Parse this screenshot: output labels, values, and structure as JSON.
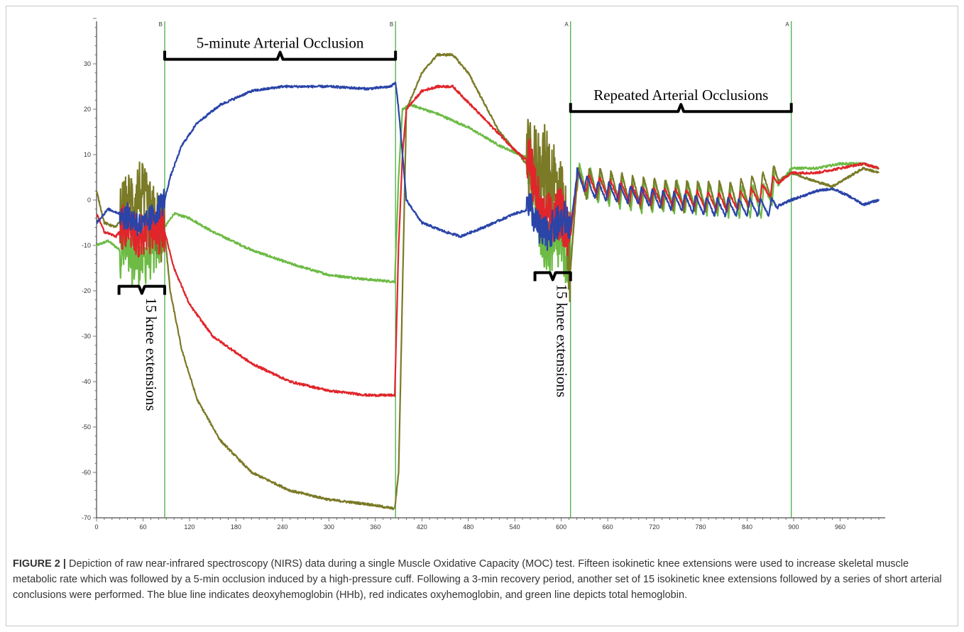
{
  "figure": {
    "label": "FIGURE 2 |",
    "caption": "Depiction of raw near-infrared spectroscopy (NIRS) data during a single Muscle Oxidative Capacity (MOC) test. Fifteen isokinetic knee extensions were used to increase skeletal muscle metabolic rate which was followed by a 5-min occlusion induced by a high-pressure cuff. Following a 3-min recovery period, another set of 15 isokinetic knee extensions followed by a series of short arterial conclusions were performed. The blue line indicates deoxyhemoglobin (HHb), red indicates oxyhemoglobin, and green line depicts total hemoglobin."
  },
  "chart_data": {
    "type": "line",
    "title": "",
    "xlabel": "",
    "ylabel": "",
    "xlim": [
      0,
      1010
    ],
    "ylim": [
      -70,
      40
    ],
    "x_ticks": [
      "0",
      "60",
      "120",
      "180",
      "240",
      "300",
      "360",
      "420",
      "480",
      "540",
      "600",
      "660",
      "720",
      "780",
      "840",
      "900",
      "960"
    ],
    "y_ticks": [
      "30",
      "20",
      "10",
      "0",
      "-10",
      "-20",
      "-30",
      "-40",
      "-50",
      "-60",
      "-70"
    ],
    "markers": [
      {
        "x": 88,
        "label": "B"
      },
      {
        "x": 386,
        "label": "B"
      },
      {
        "x": 612,
        "label": "A"
      },
      {
        "x": 897,
        "label": "A"
      }
    ],
    "annotations": [
      {
        "text": "5-minute Arterial Occlusion",
        "x_start": 88,
        "x_end": 386,
        "y": 31
      },
      {
        "text": "Repeated Arterial Occlusions",
        "x_start": 612,
        "x_end": 897,
        "y": 19.5
      },
      {
        "text": "15 knee  extensions",
        "x_start": 29,
        "x_end": 88,
        "y": -19
      },
      {
        "text": "15 knee  extensions",
        "x_start": 566,
        "x_end": 612,
        "y": -16
      }
    ],
    "colors": {
      "blue": "#2a44a8",
      "red": "#e0262b",
      "green": "#6dbb45",
      "olive": "#7a7a27",
      "marker": "#3aa63a"
    },
    "series": [
      {
        "color": "blue",
        "points": [
          [
            0,
            -5
          ],
          [
            15,
            -2
          ],
          [
            30,
            -3
          ],
          [
            45,
            -4
          ],
          [
            60,
            -6
          ],
          [
            75,
            -3
          ],
          [
            88,
            0
          ],
          [
            95,
            5
          ],
          [
            110,
            12
          ],
          [
            130,
            17
          ],
          [
            160,
            21
          ],
          [
            200,
            24
          ],
          [
            240,
            25
          ],
          [
            300,
            25
          ],
          [
            350,
            24.5
          ],
          [
            380,
            25
          ],
          [
            386,
            26
          ],
          [
            390,
            20
          ],
          [
            400,
            0
          ],
          [
            420,
            -5
          ],
          [
            450,
            -7
          ],
          [
            470,
            -8
          ],
          [
            500,
            -6
          ],
          [
            540,
            -3
          ],
          [
            560,
            -2
          ],
          [
            575,
            -8
          ],
          [
            590,
            -6
          ],
          [
            605,
            -4
          ],
          [
            612,
            -6
          ],
          [
            620,
            5
          ],
          [
            640,
            2
          ],
          [
            680,
            1
          ],
          [
            720,
            0
          ],
          [
            760,
            -1
          ],
          [
            800,
            -2
          ],
          [
            840,
            -2
          ],
          [
            870,
            -2
          ],
          [
            897,
            0
          ],
          [
            930,
            2
          ],
          [
            950,
            2.5
          ],
          [
            970,
            1
          ],
          [
            990,
            -1
          ],
          [
            1010,
            0
          ]
        ]
      },
      {
        "color": "red",
        "points": [
          [
            0,
            -3
          ],
          [
            10,
            -7
          ],
          [
            25,
            -8
          ],
          [
            40,
            -5
          ],
          [
            55,
            -8
          ],
          [
            70,
            -7
          ],
          [
            88,
            -7
          ],
          [
            100,
            -15
          ],
          [
            120,
            -23
          ],
          [
            150,
            -30
          ],
          [
            200,
            -36
          ],
          [
            250,
            -40
          ],
          [
            300,
            -42
          ],
          [
            350,
            -43
          ],
          [
            385,
            -43
          ],
          [
            390,
            -10
          ],
          [
            395,
            10
          ],
          [
            400,
            20
          ],
          [
            420,
            24
          ],
          [
            440,
            25
          ],
          [
            460,
            25
          ],
          [
            500,
            18
          ],
          [
            540,
            11
          ],
          [
            560,
            8
          ],
          [
            575,
            -5
          ],
          [
            590,
            -4
          ],
          [
            600,
            -3
          ],
          [
            612,
            -8
          ],
          [
            620,
            4
          ],
          [
            640,
            3
          ],
          [
            700,
            0.5
          ],
          [
            760,
            0
          ],
          [
            820,
            -1
          ],
          [
            860,
            1
          ],
          [
            897,
            6
          ],
          [
            930,
            6
          ],
          [
            960,
            7
          ],
          [
            990,
            8
          ],
          [
            1010,
            7
          ]
        ]
      },
      {
        "color": "green",
        "points": [
          [
            0,
            -10
          ],
          [
            15,
            -9
          ],
          [
            30,
            -11
          ],
          [
            45,
            -13
          ],
          [
            60,
            -13
          ],
          [
            75,
            -11
          ],
          [
            88,
            -6
          ],
          [
            100,
            -3
          ],
          [
            120,
            -4
          ],
          [
            150,
            -7
          ],
          [
            200,
            -11
          ],
          [
            250,
            -14
          ],
          [
            300,
            -16.5
          ],
          [
            350,
            -17.5
          ],
          [
            385,
            -18
          ],
          [
            390,
            5
          ],
          [
            395,
            20
          ],
          [
            405,
            21
          ],
          [
            440,
            19
          ],
          [
            480,
            16
          ],
          [
            520,
            12
          ],
          [
            560,
            9
          ],
          [
            575,
            -10
          ],
          [
            590,
            -11
          ],
          [
            600,
            -10
          ],
          [
            612,
            -15
          ],
          [
            620,
            4
          ],
          [
            650,
            2
          ],
          [
            700,
            0
          ],
          [
            760,
            0
          ],
          [
            820,
            -1
          ],
          [
            860,
            -1
          ],
          [
            897,
            7
          ],
          [
            930,
            7
          ],
          [
            960,
            8
          ],
          [
            990,
            8
          ],
          [
            1010,
            7
          ]
        ]
      },
      {
        "color": "olive",
        "points": [
          [
            0,
            2
          ],
          [
            10,
            -5
          ],
          [
            25,
            -6
          ],
          [
            40,
            -2
          ],
          [
            55,
            2
          ],
          [
            70,
            -4
          ],
          [
            88,
            -7
          ],
          [
            95,
            -20
          ],
          [
            110,
            -33
          ],
          [
            130,
            -44
          ],
          [
            160,
            -53
          ],
          [
            200,
            -60
          ],
          [
            250,
            -64
          ],
          [
            300,
            -66
          ],
          [
            350,
            -67
          ],
          [
            385,
            -68
          ],
          [
            390,
            -60
          ],
          [
            395,
            -20
          ],
          [
            400,
            20
          ],
          [
            420,
            28
          ],
          [
            440,
            32
          ],
          [
            460,
            32
          ],
          [
            480,
            28
          ],
          [
            520,
            15
          ],
          [
            560,
            7
          ],
          [
            575,
            7
          ],
          [
            590,
            5
          ],
          [
            605,
            -5
          ],
          [
            612,
            -15
          ],
          [
            620,
            3
          ],
          [
            650,
            3
          ],
          [
            700,
            1
          ],
          [
            760,
            0
          ],
          [
            820,
            0
          ],
          [
            860,
            2
          ],
          [
            897,
            6
          ],
          [
            930,
            4
          ],
          [
            950,
            3
          ],
          [
            970,
            5
          ],
          [
            990,
            7
          ],
          [
            1010,
            6
          ]
        ]
      }
    ],
    "noisy_segments": [
      {
        "x_start": 30,
        "x_end": 88,
        "noise": {
          "blue": 3,
          "red": 5,
          "green": 6,
          "olive": 8
        }
      },
      {
        "x_start": 555,
        "x_end": 612,
        "noise": {
          "blue": 4,
          "red": 6,
          "green": 6,
          "olive": 10
        }
      }
    ],
    "oscillation": {
      "x_start": 620,
      "x_end": 880,
      "period": 14,
      "amplitude": {
        "blue": 4,
        "red": 4,
        "green": 7,
        "olive": 7
      }
    }
  }
}
